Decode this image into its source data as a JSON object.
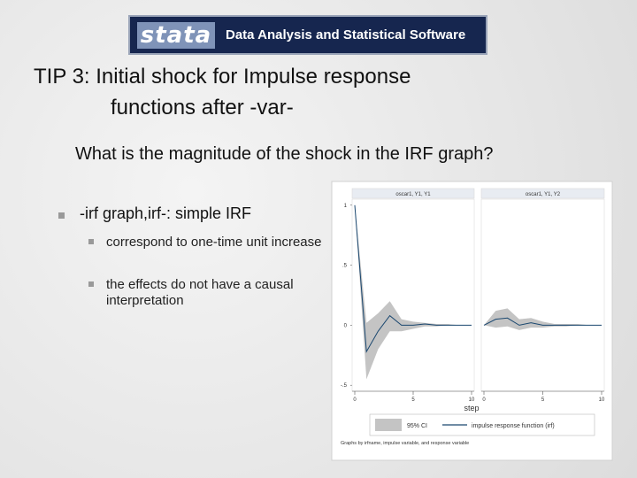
{
  "header": {
    "logo": "stata",
    "tagline": "Data Analysis and Statistical Software"
  },
  "title": [
    "TIP 3: Initial shock for Impulse response",
    "functions after -var-"
  ],
  "question": "What is the magnitude of the shock in the IRF graph?",
  "bullets": [
    {
      "text": "-irf graph,irf-: simple IRF",
      "items": [
        "correspond to one-time unit increase",
        "the effects do not have a causal interpretation"
      ]
    }
  ],
  "chart_data": {
    "type": "line",
    "x": [
      0,
      1,
      2,
      3,
      4,
      5,
      6,
      7,
      8,
      9,
      10
    ],
    "xlim": [
      0,
      10
    ],
    "xticks": [
      0,
      5,
      10
    ],
    "ylim": [
      -0.55,
      1.05
    ],
    "yticks": [
      1,
      {
        "value": 0.5,
        "label": ".5"
      },
      0,
      {
        "value": -0.5,
        "label": "-.5"
      }
    ],
    "xlabel": "step",
    "ci": {
      "name": "95% CI",
      "color": "#c4c4c4"
    },
    "irf": {
      "name": "impulse response function (irf)",
      "color": "#1a476f"
    },
    "panels": [
      {
        "title": "oscar1, Y1, Y1",
        "values": [
          1,
          -0.22,
          -0.05,
          0.08,
          0.0,
          0.0,
          0.01,
          0.0,
          0.0,
          0.0,
          0.0
        ],
        "lower": [
          1,
          -0.45,
          -0.2,
          -0.05,
          -0.05,
          -0.03,
          -0.01,
          -0.01,
          0.0,
          0.0,
          0.0
        ],
        "upper": [
          1,
          0.02,
          0.1,
          0.2,
          0.05,
          0.03,
          0.02,
          0.01,
          0.01,
          0.0,
          0.0
        ]
      },
      {
        "title": "oscar1, Y1, Y2",
        "values": [
          0,
          0.05,
          0.06,
          0.0,
          0.02,
          0.0,
          0.0,
          0.0,
          0.0,
          0.0,
          0.0
        ],
        "lower": [
          0,
          -0.02,
          -0.01,
          -0.04,
          -0.02,
          -0.02,
          -0.01,
          -0.01,
          0.0,
          0.0,
          0.0
        ],
        "upper": [
          0,
          0.12,
          0.14,
          0.05,
          0.06,
          0.03,
          0.01,
          0.01,
          0.01,
          0.0,
          0.0
        ]
      }
    ],
    "note": "Graphs by irfname, impulse variable, and response variable"
  }
}
